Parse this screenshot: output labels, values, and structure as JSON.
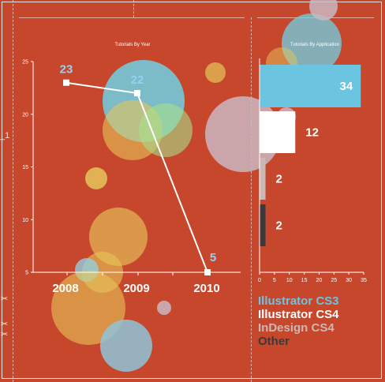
{
  "side_label": "_1",
  "scissor_icon": "scissors-icon",
  "colors": {
    "background": "#c7472c",
    "illustrator_cs3": "#6bc4e0",
    "illustrator_cs4": "#ffffff",
    "indesign_cs4": "#c9b8b4",
    "other": "#3a3a3a"
  },
  "chart_data": [
    {
      "type": "line",
      "title": "Tutorials By Year",
      "x": [
        "2008",
        "2009",
        "2010"
      ],
      "series": [
        {
          "values": [
            23,
            22,
            5
          ]
        }
      ],
      "data_labels": [
        "23",
        "22",
        "5"
      ],
      "ylim": [
        5,
        25
      ],
      "yticks": [
        5,
        10,
        15,
        20,
        25
      ],
      "xlabel": "",
      "ylabel": "",
      "grid": false,
      "decoration": "translucent bubbles"
    },
    {
      "type": "bar",
      "orientation": "horizontal",
      "title": "Tutorials By Application",
      "categories": [
        "Illustrator CS3",
        "Illustrator CS4",
        "InDesign CS4",
        "Other"
      ],
      "values": [
        34,
        12,
        2,
        2
      ],
      "data_labels": [
        "34",
        "12",
        "2",
        "2"
      ],
      "xlim": [
        0,
        35
      ],
      "xticks": [
        0,
        5,
        10,
        15,
        20,
        25,
        30,
        35
      ],
      "legend": {
        "placement": "bottom",
        "items": [
          "Illustrator CS3",
          "Illustrator CS4",
          "InDesign CS4",
          "Other"
        ]
      },
      "grid": false
    }
  ]
}
